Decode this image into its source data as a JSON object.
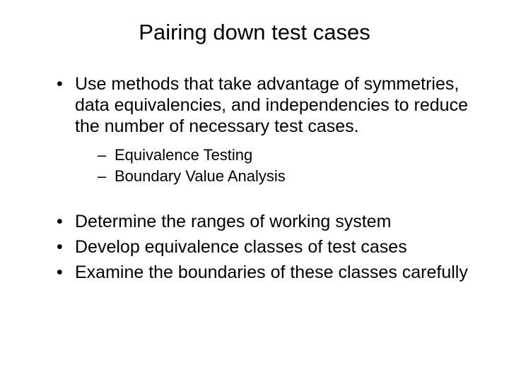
{
  "slide": {
    "title": "Pairing down test cases",
    "title_fontsize": 31,
    "body_fontsize": 25,
    "sub_fontsize": 22,
    "background_color": "#ffffff",
    "text_color": "#000000",
    "font_family": "Arial",
    "bullets_group1": [
      "Use methods that take advantage of symmetries, data equivalencies, and independencies to reduce the number of necessary test cases."
    ],
    "sub_bullets": [
      "Equivalence Testing",
      "Boundary Value Analysis"
    ],
    "bullets_group2": [
      "Determine the ranges of working system",
      "Develop equivalence classes of test cases",
      "Examine the boundaries of these classes carefully"
    ]
  }
}
